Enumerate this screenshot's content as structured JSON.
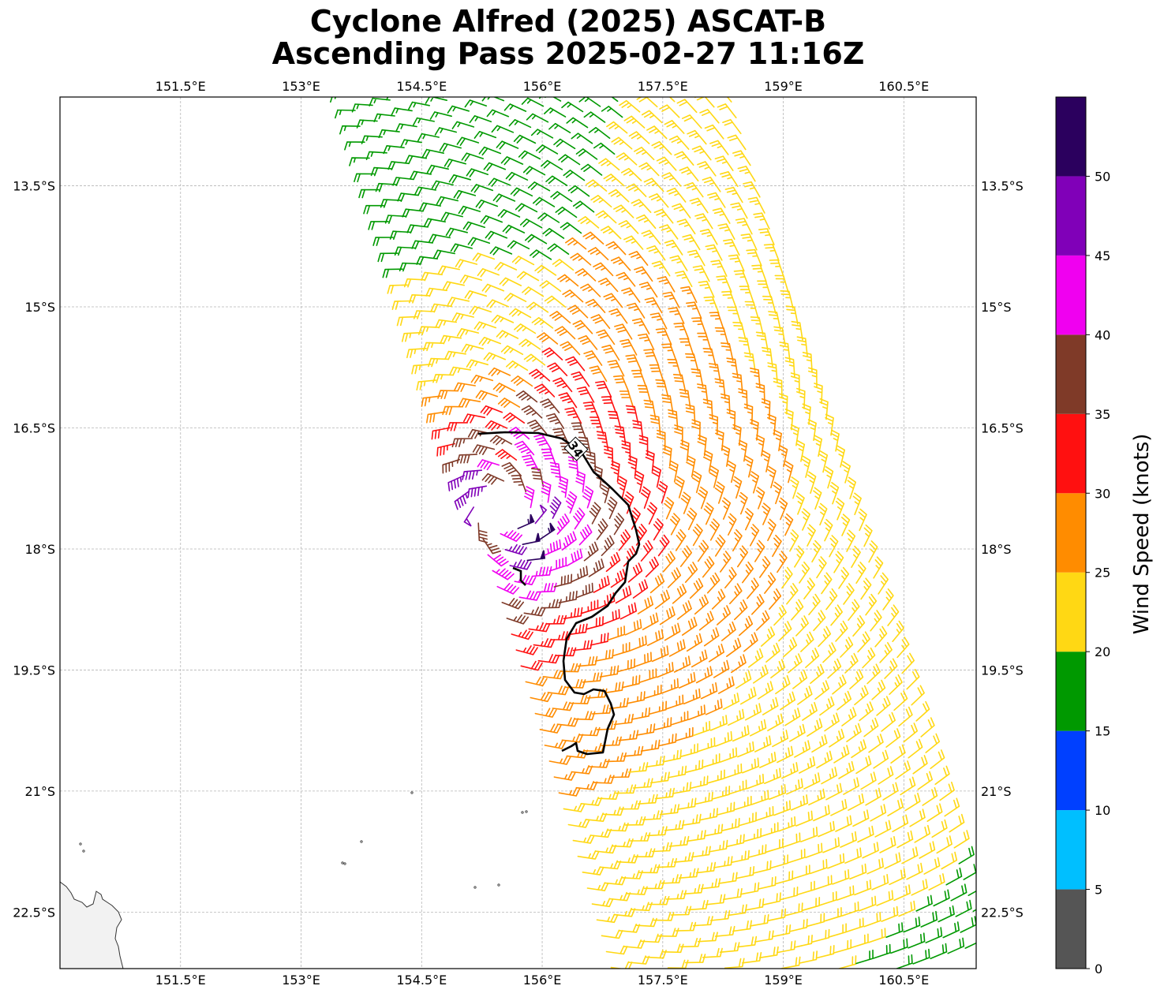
{
  "title": {
    "line1": "Cyclone Alfred (2025) ASCAT-B",
    "line2": "Ascending Pass 2025-02-27 11:16Z"
  },
  "map": {
    "lon_range": [
      150.0,
      161.4
    ],
    "lat_range": [
      -23.2,
      -12.4
    ],
    "lon_ticks": [
      151.5,
      153.0,
      154.5,
      156.0,
      157.5,
      159.0,
      160.5
    ],
    "lon_tick_labels": [
      "151.5°E",
      "153°E",
      "154.5°E",
      "156°E",
      "157.5°E",
      "159°E",
      "160.5°E"
    ],
    "lat_ticks": [
      -13.5,
      -15.0,
      -16.5,
      -18.0,
      -19.5,
      -21.0,
      -22.5
    ],
    "lat_tick_labels": [
      "13.5°S",
      "15°S",
      "16.5°S",
      "18°S",
      "19.5°S",
      "21°S",
      "22.5°S"
    ],
    "grid": true,
    "coastline_color": "#333333",
    "land_color": "#f2f2f2"
  },
  "contour": {
    "label": "34",
    "units": "knots",
    "color": "#000000"
  },
  "wind": {
    "center_lon": 155.5,
    "center_lat": -17.55,
    "swath_description": "ASCAT-B ascending swath wind barbs colored by speed"
  },
  "colorbar": {
    "label": "Wind Speed (knots)",
    "bounds": [
      0,
      5,
      10,
      15,
      20,
      25,
      30,
      35,
      40,
      45,
      50,
      55
    ],
    "tick_labels": [
      "0",
      "5",
      "10",
      "15",
      "20",
      "25",
      "30",
      "35",
      "40",
      "45",
      "50"
    ],
    "colors": [
      "#555555",
      "#00bfff",
      "#0040ff",
      "#009900",
      "#ffd814",
      "#ff8c00",
      "#ff1010",
      "#7f3a28",
      "#f000f0",
      "#8000b8",
      "#2b005e"
    ]
  }
}
